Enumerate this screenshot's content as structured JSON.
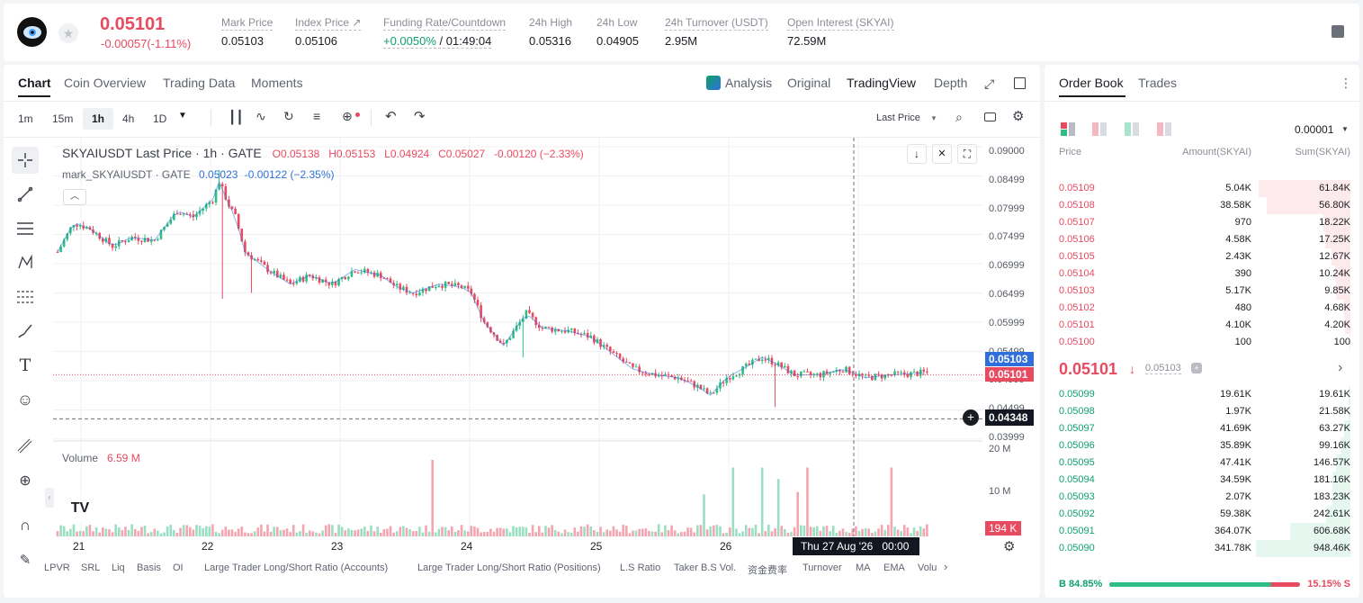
{
  "header": {
    "symbol_logo": "SKYAI",
    "last_price": "0.05101",
    "change": "-0.00057(-1.11%)",
    "stats": [
      {
        "label": "Mark Price",
        "value": "0.05103"
      },
      {
        "label": "Index Price ↗",
        "value": "0.05106"
      },
      {
        "label": "Funding Rate/Countdown",
        "value_green": "+0.0050%",
        "value": "/ 01:49:04"
      },
      {
        "label": "24h High",
        "value": "0.05316"
      },
      {
        "label": "24h Low",
        "value": "0.04905"
      },
      {
        "label": "24h Turnover (USDT)",
        "value": "2.95M"
      },
      {
        "label": "Open Interest (SKYAI)",
        "value": "72.59M"
      }
    ]
  },
  "chart_tabs": [
    "Chart",
    "Coin Overview",
    "Trading Data",
    "Moments"
  ],
  "view_tabs": [
    "Analysis",
    "Original",
    "TradingView",
    "Depth"
  ],
  "intervals": [
    "1m",
    "15m",
    "1h",
    "4h",
    "1D"
  ],
  "active_interval": "1h",
  "price_type": "Last Price",
  "legend": {
    "title": "SKYAIUSDT Last Price · 1h · GATE",
    "o": "O0.05138",
    "h": "H0.05153",
    "l": "L0.04924",
    "c": "C0.05027",
    "chg": "-0.00120 (−2.33%)",
    "mark": "mark_SKYAIUSDT · GATE",
    "mark_val": "0.05023",
    "mark_chg": "-0.00122 (−2.35%)"
  },
  "volume": {
    "label": "Volume",
    "value": "6.59 M",
    "marker": "194 K"
  },
  "price_axis": [
    "0.09000",
    "0.08499",
    "0.07999",
    "0.07499",
    "0.06999",
    "0.06499",
    "0.05999",
    "0.05499",
    "0.04999",
    "0.04499",
    "0.03999"
  ],
  "price_tags": {
    "mark": "0.05103",
    "last": "0.05101",
    "cursor": "0.04348"
  },
  "vol_axis": [
    "20 M",
    "10 M"
  ],
  "time_axis": [
    "21",
    "22",
    "23",
    "24",
    "25",
    "26"
  ],
  "crosshair_time": "Thu 27 Aug '26",
  "crosshair_hour": "00:00",
  "indicators": [
    "LPVR",
    "SRL",
    "Liq",
    "Basis",
    "OI",
    "Large Trader Long/Short Ratio (Accounts)",
    "Large Trader Long/Short Ratio (Positions)",
    "L.S Ratio",
    "Taker B.S Vol.",
    "资金费率",
    "Turnover",
    "MA",
    "EMA",
    "Volu"
  ],
  "chart_data": {
    "type": "candlestick",
    "title": "SKYAIUSDT Last Price · 1h · GATE",
    "x_ticks": [
      "21",
      "22",
      "23",
      "24",
      "25",
      "26"
    ],
    "ylim": [
      0.03999,
      0.09
    ],
    "ohlc_series": "hourly candles approx 0.073 → 0.085 → 0.066 → 0.058 → 0.049 → 0.051",
    "last": 0.05101,
    "mark": 0.05103
  },
  "orderbook": {
    "tabs": [
      "Order Book",
      "Trades"
    ],
    "precision": "0.00001",
    "cols": [
      "Price",
      "Amount(SKYAI)",
      "Sum(SKYAI)"
    ],
    "asks": [
      {
        "p": "0.05109",
        "a": "5.04K",
        "s": "61.84K",
        "d": 0.97
      },
      {
        "p": "0.05108",
        "a": "38.58K",
        "s": "56.80K",
        "d": 0.89
      },
      {
        "p": "0.05107",
        "a": "970",
        "s": "18.22K",
        "d": 0.29
      },
      {
        "p": "0.05106",
        "a": "4.58K",
        "s": "17.25K",
        "d": 0.27
      },
      {
        "p": "0.05105",
        "a": "2.43K",
        "s": "12.67K",
        "d": 0.2
      },
      {
        "p": "0.05104",
        "a": "390",
        "s": "10.24K",
        "d": 0.16
      },
      {
        "p": "0.05103",
        "a": "5.17K",
        "s": "9.85K",
        "d": 0.15
      },
      {
        "p": "0.05102",
        "a": "480",
        "s": "4.68K",
        "d": 0.07
      },
      {
        "p": "0.05101",
        "a": "4.10K",
        "s": "4.20K",
        "d": 0.06
      },
      {
        "p": "0.05100",
        "a": "100",
        "s": "100",
        "d": 0.01
      }
    ],
    "mid_price": "0.05101",
    "mid_arrow": "↓",
    "mid_mark": "0.05103",
    "bids": [
      {
        "p": "0.05099",
        "a": "19.61K",
        "s": "19.61K",
        "d": 0.02
      },
      {
        "p": "0.05098",
        "a": "1.97K",
        "s": "21.58K",
        "d": 0.02
      },
      {
        "p": "0.05097",
        "a": "41.69K",
        "s": "63.27K",
        "d": 0.07
      },
      {
        "p": "0.05096",
        "a": "35.89K",
        "s": "99.16K",
        "d": 0.1
      },
      {
        "p": "0.05095",
        "a": "47.41K",
        "s": "146.57K",
        "d": 0.15
      },
      {
        "p": "0.05094",
        "a": "34.59K",
        "s": "181.16K",
        "d": 0.19
      },
      {
        "p": "0.05093",
        "a": "2.07K",
        "s": "183.23K",
        "d": 0.19
      },
      {
        "p": "0.05092",
        "a": "59.38K",
        "s": "242.61K",
        "d": 0.26
      },
      {
        "p": "0.05091",
        "a": "364.07K",
        "s": "606.68K",
        "d": 0.64
      },
      {
        "p": "0.05090",
        "a": "341.78K",
        "s": "948.46K",
        "d": 1.0
      }
    ],
    "buy_ratio": "B 84.85%",
    "sell_ratio": "15.15% S",
    "buy_frac": 0.8485
  },
  "colors": {
    "up": "#2ebd85",
    "down": "#e84a5f",
    "accent": "#0ea16b",
    "blue": "#2f6fdb"
  }
}
